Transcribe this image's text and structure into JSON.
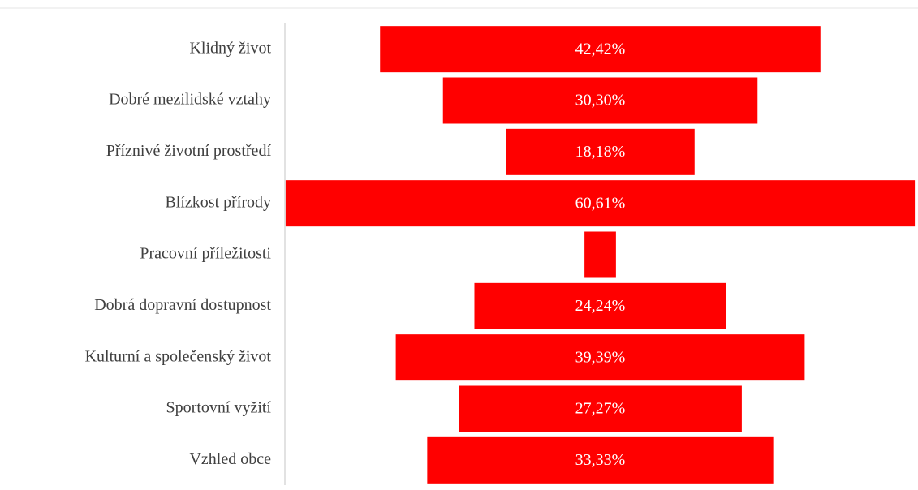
{
  "chart_data": {
    "type": "funnel",
    "categories": [
      "Klidný život",
      "Dobré mezilidské vztahy",
      "Příznivé životní prostředí",
      "Blízkost přírody",
      "Pracovní příležitosti",
      "Dobrá dopravní dostupnost",
      "Kulturní a společenský život",
      "Sportovní vyžití",
      "Vzhled obce"
    ],
    "values": [
      42.42,
      30.3,
      18.18,
      60.61,
      3.03,
      24.24,
      39.39,
      27.27,
      33.33
    ],
    "value_labels": [
      "42,42%",
      "30,30%",
      "18,18%",
      "60,61%",
      null,
      "24,24%",
      "39,39%",
      "27,27%",
      "33,33%"
    ],
    "color": "#ff0000"
  }
}
